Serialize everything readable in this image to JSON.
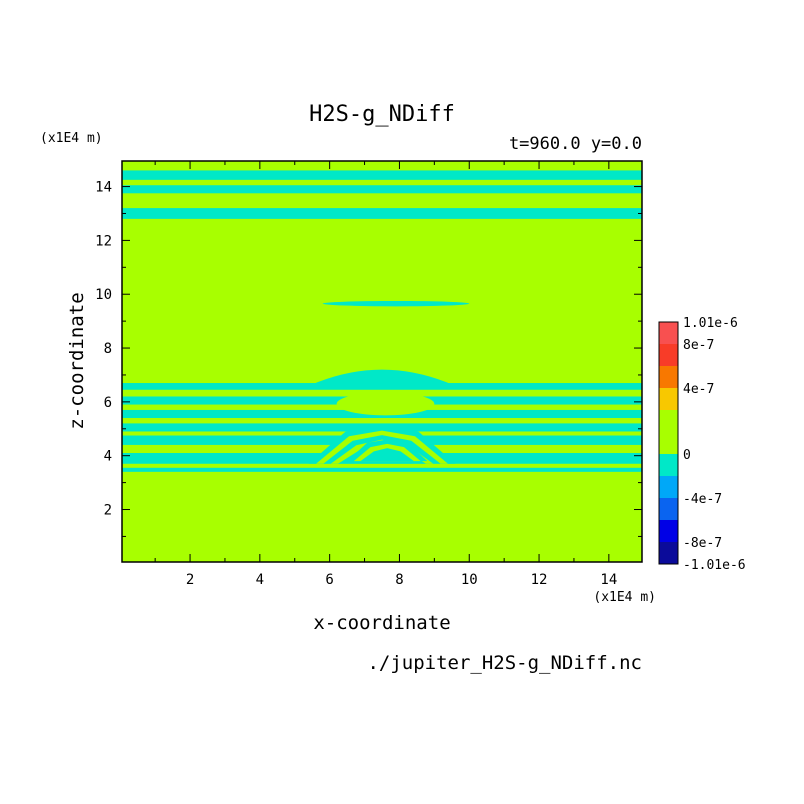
{
  "chart_data": {
    "type": "heatmap",
    "title": "H2S-g_NDiff",
    "subtitle": "t=960.0 y=0.0",
    "xlabel": "x-coordinate",
    "ylabel": "z-coordinate",
    "x_unit": "(x1E4 m)",
    "y_unit": "(x1E4 m)",
    "xlim": [
      0.05,
      14.95
    ],
    "ylim": [
      0.05,
      14.95
    ],
    "x_ticks": [
      2,
      4,
      6,
      8,
      10,
      12,
      14
    ],
    "y_ticks": [
      2,
      4,
      6,
      8,
      10,
      12,
      14
    ],
    "background_value": 0,
    "colorbar": {
      "levels": [
        "-1.01e-6",
        "-8e-7",
        "-4e-7",
        "0",
        "4e-7",
        "8e-7",
        "1.01e-6"
      ],
      "bands_bottom_to_top": [
        "#0b0b9a",
        "#0000e6",
        "#0a64f0",
        "#00a8f8",
        "#00e8c8",
        "#a8ff00",
        "#a8ff00",
        "#f8c800",
        "#f87800",
        "#f83c28",
        "#f85050"
      ]
    },
    "colors": {
      "zero_band": "#a8ff00",
      "small_negative_band": "#00e8c8"
    },
    "negative_bands_z": [
      [
        14.25,
        14.6
      ],
      [
        13.75,
        14.05
      ],
      [
        12.8,
        13.2
      ],
      [
        6.45,
        6.7
      ],
      [
        5.9,
        6.2
      ],
      [
        5.4,
        5.7
      ],
      [
        4.9,
        5.2
      ],
      [
        4.4,
        4.75
      ],
      [
        3.7,
        4.1
      ],
      [
        3.4,
        3.55
      ]
    ],
    "negative_features": [
      {
        "x": [
          5.5,
          9.5
        ],
        "z": [
          6.65,
          7.2
        ],
        "shape": "dome"
      },
      {
        "x": [
          6.2,
          9.0
        ],
        "z": [
          5.5,
          6.35
        ],
        "shape": "lens"
      },
      {
        "x": [
          5.4,
          9.6
        ],
        "z": [
          3.7,
          5.1
        ],
        "shape": "chevron"
      },
      {
        "x": [
          6.5,
          8.8
        ],
        "z": [
          3.8,
          4.6
        ],
        "shape": "small-chevron"
      },
      {
        "x": [
          5.8,
          10.0
        ],
        "z": [
          9.55,
          9.75
        ],
        "shape": "thin-lens"
      }
    ],
    "footer": "./jupiter_H2S-g_NDiff.nc"
  }
}
